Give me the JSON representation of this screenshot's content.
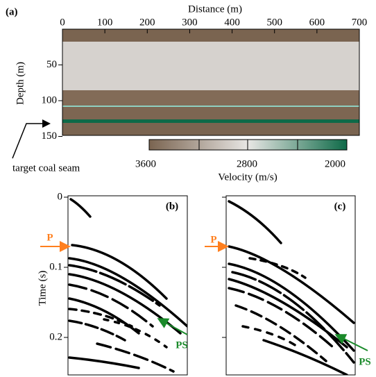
{
  "panel_a": {
    "label": "(a)",
    "x_axis_title": "Distance (m)",
    "x_ticks": [
      0,
      100,
      200,
      300,
      400,
      500,
      600,
      700
    ],
    "y_axis_title": "Depth (m)",
    "y_ticks": [
      50,
      100,
      150
    ],
    "annotation": "target coal seam",
    "colorbar": {
      "ticks": [
        3600,
        2800,
        2000
      ],
      "title": "Velocity (m/s)"
    }
  },
  "panel_b": {
    "label": "(b)",
    "y_axis_title": "Time (s)",
    "y_ticks": [
      0,
      0.1,
      0.2
    ],
    "annotations": [
      "P",
      "PS"
    ]
  },
  "panel_c": {
    "label": "(c)",
    "annotations": [
      "P",
      "PS"
    ]
  }
}
